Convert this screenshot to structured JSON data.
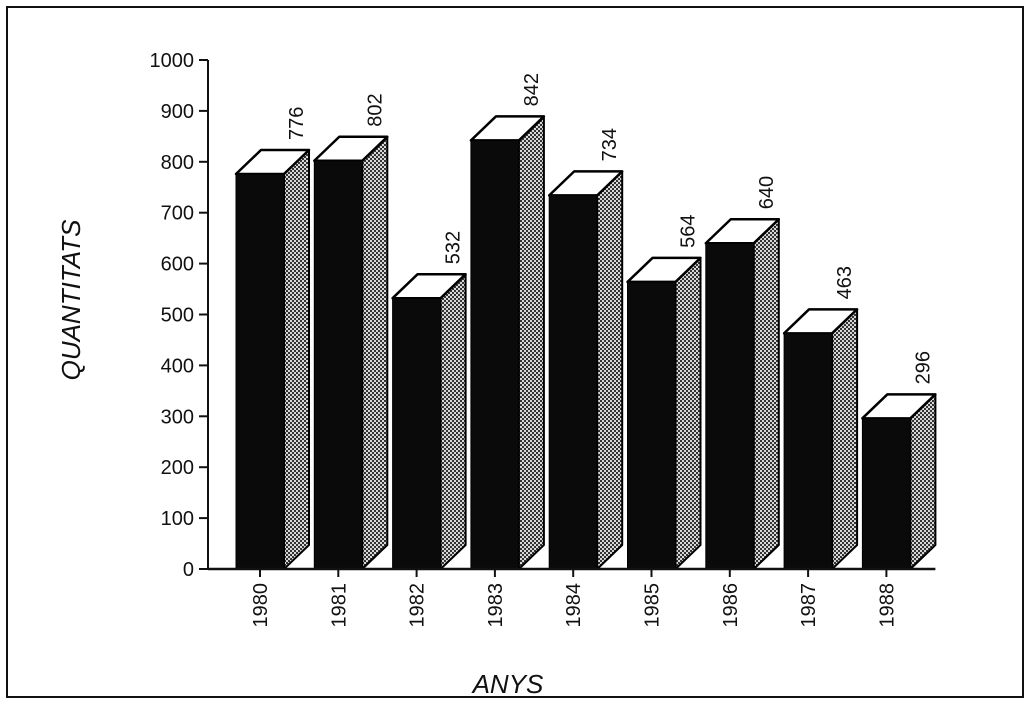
{
  "chart_data": {
    "type": "bar",
    "style": "3d",
    "categories": [
      "1980",
      "1981",
      "1982",
      "1983",
      "1984",
      "1985",
      "1986",
      "1987",
      "1988"
    ],
    "values": [
      776,
      802,
      532,
      842,
      734,
      564,
      640,
      463,
      296
    ],
    "data_labels": [
      "776",
      "802",
      "532",
      "842",
      "734",
      "564",
      "640",
      "463",
      "296"
    ],
    "title": "",
    "xlabel": "ANYS",
    "ylabel": "QUANTITATS",
    "ylim": [
      0,
      1000
    ],
    "yticks": [
      "0",
      "100",
      "200",
      "300",
      "400",
      "500",
      "600",
      "700",
      "800",
      "900",
      "1000"
    ],
    "grid": false,
    "colors": {
      "bar_front": "#0a0a0a",
      "bar_top": "#ffffff",
      "bar_side_pattern": "checker-gray",
      "axis": "#111111"
    }
  }
}
